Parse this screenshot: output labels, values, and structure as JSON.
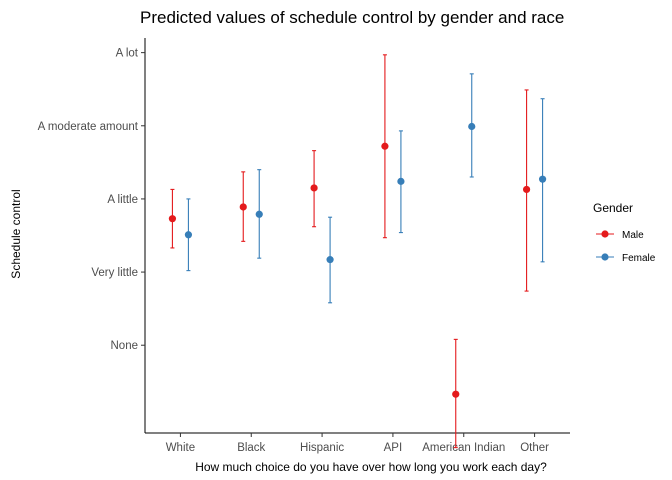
{
  "chart_data": {
    "type": "scatter",
    "subtype": "point-with-error-bars",
    "title": "Predicted values of schedule control by gender and race",
    "xlabel": "How much choice do you have over how long you work each day?",
    "ylabel": "Schedule control",
    "categories": [
      "White",
      "Black",
      "Hispanic",
      "API",
      "American Indian",
      "Other"
    ],
    "y_scale": {
      "tick_labels": [
        "None",
        "Very little",
        "A little",
        "A moderate amount",
        "A lot"
      ],
      "tick_values": [
        1,
        2,
        3,
        4,
        5
      ],
      "ylim": [
        -0.2,
        5.2
      ]
    },
    "legend": {
      "title": "Gender",
      "position": "right"
    },
    "grid": false,
    "series": [
      {
        "name": "Male",
        "color": "#e41a1c",
        "values": [
          2.73,
          2.89,
          3.15,
          3.72,
          0.33,
          3.13
        ],
        "lower": [
          2.33,
          2.42,
          2.62,
          2.47,
          -0.4,
          1.74
        ],
        "upper": [
          3.13,
          3.37,
          3.66,
          4.97,
          1.08,
          4.49
        ]
      },
      {
        "name": "Female",
        "color": "#377eb8",
        "values": [
          2.51,
          2.79,
          2.17,
          3.24,
          3.99,
          3.27
        ],
        "lower": [
          2.02,
          2.19,
          1.58,
          2.54,
          3.3,
          2.14
        ],
        "upper": [
          3.0,
          3.4,
          2.75,
          3.93,
          4.71,
          4.37
        ]
      }
    ]
  }
}
